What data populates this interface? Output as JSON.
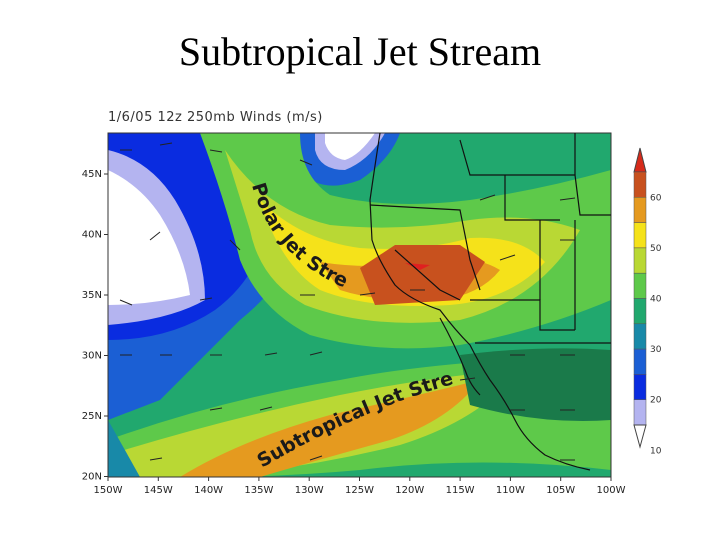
{
  "slide_title": "Subtropical Jet Stream",
  "map_title": "1/6/05 12z 250mb Winds (m/s)",
  "lat_labels": [
    "45N",
    "40N",
    "35N",
    "30N",
    "25N",
    "20N"
  ],
  "lon_labels": [
    "150W",
    "145W",
    "140W",
    "135W",
    "130W",
    "125W",
    "120W",
    "115W",
    "110W",
    "105W",
    "100W"
  ],
  "colorbar": {
    "labels": [
      "60",
      "50",
      "40",
      "30",
      "20",
      "10"
    ],
    "colors": [
      "#c8511e",
      "#e59a1f",
      "#f5e21a",
      "#b9d834",
      "#5ec94a",
      "#21a86e",
      "#1889a8",
      "#1b5fd4",
      "#0a2ce0",
      "#b4b4f0"
    ],
    "top_arrow_color": "#d62a1a"
  },
  "annotations": {
    "polar_jet": "Polar Jet Stream",
    "subtropical_jet": "Subtropical Jet Stream"
  }
}
